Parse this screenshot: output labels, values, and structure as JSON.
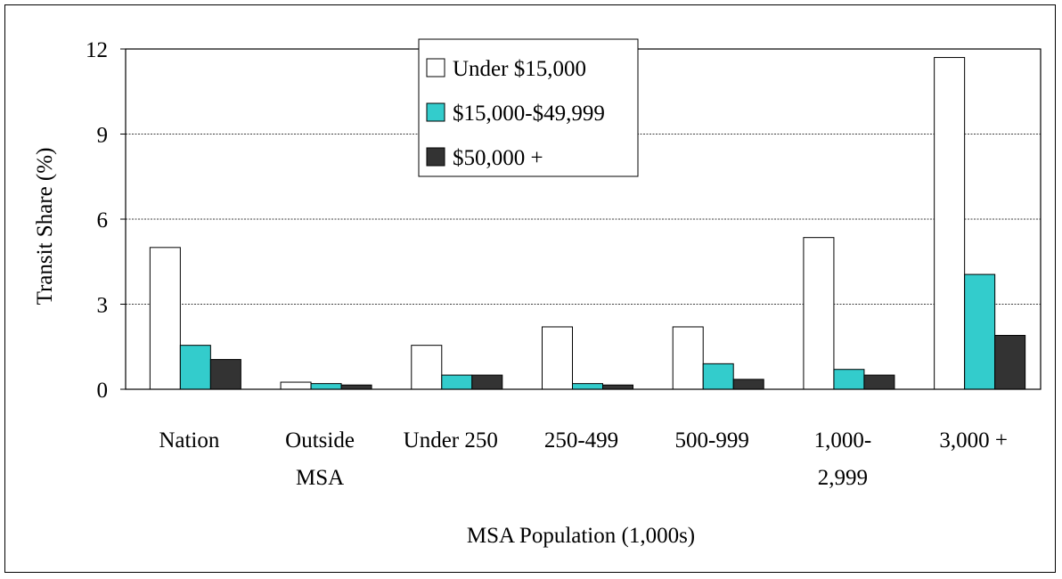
{
  "chart_data": {
    "type": "bar",
    "xlabel": "MSA Population (1,000s)",
    "ylabel": "Transit Share (%)",
    "ylim": [
      0,
      12
    ],
    "yticks": [
      0,
      3,
      6,
      9,
      12
    ],
    "grid": "horizontal dashed",
    "legend_position": "top-center",
    "categories": [
      [
        "Nation"
      ],
      [
        "Outside",
        "MSA"
      ],
      [
        "Under 250"
      ],
      [
        "250-499"
      ],
      [
        "500-999"
      ],
      [
        "1,000-",
        "2,999"
      ],
      [
        "3,000 +"
      ]
    ],
    "series": [
      {
        "name": "Under $15,000",
        "color": "#ffffff",
        "values": [
          5.0,
          0.25,
          1.55,
          2.2,
          2.2,
          5.35,
          11.7
        ]
      },
      {
        "name": "$15,000-$49,999",
        "color": "#33cccc",
        "values": [
          1.55,
          0.2,
          0.5,
          0.2,
          0.9,
          0.7,
          4.05
        ]
      },
      {
        "name": "$50,000 +",
        "color": "#333333",
        "values": [
          1.05,
          0.15,
          0.5,
          0.15,
          0.35,
          0.5,
          1.9
        ]
      }
    ]
  }
}
